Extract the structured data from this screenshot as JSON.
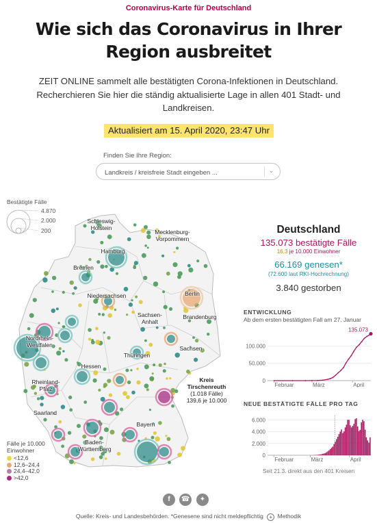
{
  "header": {
    "kicker": "Coronavirus-Karte für Deutschland",
    "headline": "Wie sich das Coronavirus in Ihrer Region ausbreitet",
    "intro": "ZEIT ONLINE sammelt alle bestätigten Corona-Infektionen in Deutschland. Recherchieren Sie hier die ständig aktualisierte Lage in allen 401 Stadt- und Landkreisen.",
    "updated": "Aktualisiert am 15. April 2020, 23:47 Uhr"
  },
  "search": {
    "label": "Finden Sie Ihre Region:",
    "placeholder": "Landkreis / kreisfreie Stadt eingeben ..."
  },
  "map": {
    "size_legend": {
      "title": "Bestätigte Fälle",
      "items": [
        "4.870",
        "2.000",
        "200"
      ]
    },
    "regions": [
      {
        "name": "Schleswig-\nHolstein"
      },
      {
        "name": "Hamburg"
      },
      {
        "name": "Mecklenburg-\nVorpommern"
      },
      {
        "name": "Bremen"
      },
      {
        "name": "Niedersachsen"
      },
      {
        "name": "Berlin"
      },
      {
        "name": "Sachsen-\nAnhalt"
      },
      {
        "name": "Brandenburg"
      },
      {
        "name": "Nordrhein-\nWestfalen"
      },
      {
        "name": "Thüringen"
      },
      {
        "name": "Sachsen"
      },
      {
        "name": "Hessen"
      },
      {
        "name": "Rheinland-\nPfalz"
      },
      {
        "name": "Saarland"
      },
      {
        "name": "Bayern"
      },
      {
        "name": "Baden-\nWürttemberg"
      }
    ],
    "callout": {
      "title": "Kreis\nTirschenreuth",
      "line1": "(1.018 Fälle)",
      "line2": "139,6 je 10.000"
    },
    "per_capita_legend": {
      "title": "Fälle je 10.000\nEinwohner",
      "items": [
        {
          "label": "<12,6",
          "color": "#e8d84a"
        },
        {
          "label": "12,6–24,4",
          "color": "#e7a874"
        },
        {
          "label": "24,4–42,0",
          "color": "#b67fa6"
        },
        {
          "label": ">42,0",
          "color": "#a52b80"
        }
      ]
    },
    "colors": {
      "land": "#f3f3f3",
      "border": "#c9c9c9",
      "dot_green": "#4d9a5c",
      "dot_teal": "#2e8c8a",
      "ring_teal": "#7fc6c0",
      "ring_pink": "#d96aa3"
    }
  },
  "stats": {
    "title": "Deutschland",
    "cases_number": "135.073",
    "cases_label": "bestätigte Fälle",
    "per_capita_value": "16,3",
    "per_capita_label": "je 10.000 Einwohner",
    "recovered_number": "66.169",
    "recovered_label": "genesen*",
    "rki_note": "(72.600 laut RKI-Hochrechnung)",
    "deaths_number": "3.840",
    "deaths_label": "gestorben",
    "color_cases": "#a7165f",
    "color_recovered": "#1b8fa0"
  },
  "chart_data": [
    {
      "type": "line",
      "title": "ENTWICKLUNG",
      "subtitle": "Ab dem ersten bestätigten Fall am 27. Januar",
      "xlabel": "",
      "ylabel": "",
      "x_tick_labels": [
        "Februar",
        "März",
        "April"
      ],
      "y_tick_labels": [
        "0",
        "50.000",
        "100.000"
      ],
      "ylim": [
        0,
        150000
      ],
      "end_label": "135.073",
      "color": "#a7165f",
      "x": [
        "2020-02-01",
        "2020-02-15",
        "2020-02-25",
        "2020-03-01",
        "2020-03-05",
        "2020-03-09",
        "2020-03-13",
        "2020-03-15",
        "2020-03-17",
        "2020-03-19",
        "2020-03-21",
        "2020-03-23",
        "2020-03-25",
        "2020-03-27",
        "2020-03-29",
        "2020-03-31",
        "2020-04-02",
        "2020-04-04",
        "2020-04-06",
        "2020-04-08",
        "2020-04-10",
        "2020-04-12",
        "2020-04-14",
        "2020-04-15"
      ],
      "values": [
        8,
        16,
        27,
        130,
        480,
        1180,
        3700,
        5800,
        9300,
        15300,
        22400,
        29100,
        37300,
        50900,
        62100,
        71800,
        84800,
        96100,
        103200,
        112300,
        121500,
        127600,
        131800,
        135073
      ]
    },
    {
      "type": "bar",
      "title": "NEUE BESTÄTIGTE FÄLLE PRO TAG",
      "xlabel": "",
      "ylabel": "",
      "x_tick_labels": [
        "Februar",
        "März",
        "April"
      ],
      "y_tick_labels": [
        "0",
        "2.000",
        "4.000",
        "6.000"
      ],
      "ylim": [
        0,
        7000
      ],
      "marker_label": "Seit 21.3. direkt aus den 401 Kreisen",
      "color": "#a7165f",
      "start_date": "2020-01-27",
      "values": [
        1,
        0,
        0,
        3,
        4,
        1,
        1,
        1,
        0,
        1,
        0,
        0,
        0,
        2,
        0,
        0,
        0,
        0,
        0,
        0,
        0,
        0,
        0,
        0,
        0,
        0,
        0,
        0,
        0,
        0,
        0,
        0,
        0,
        0,
        1,
        10,
        15,
        30,
        40,
        53,
        70,
        110,
        130,
        180,
        240,
        300,
        370,
        520,
        660,
        850,
        1050,
        1260,
        1470,
        1900,
        2300,
        2750,
        3150,
        3600,
        4020,
        4400,
        3780,
        4060,
        4740,
        5200,
        6030,
        6050,
        5100,
        4750,
        5000,
        5350,
        6150,
        6300,
        4900,
        4100,
        4330,
        5600,
        6050,
        5800,
        4350,
        3050,
        2530,
        2150,
        3050
      ]
    }
  ],
  "footer": {
    "source": "Quelle: Kreis- und Landesbehörden. *Genesene sind nicht meldepflichtig",
    "method": "Methodik"
  }
}
